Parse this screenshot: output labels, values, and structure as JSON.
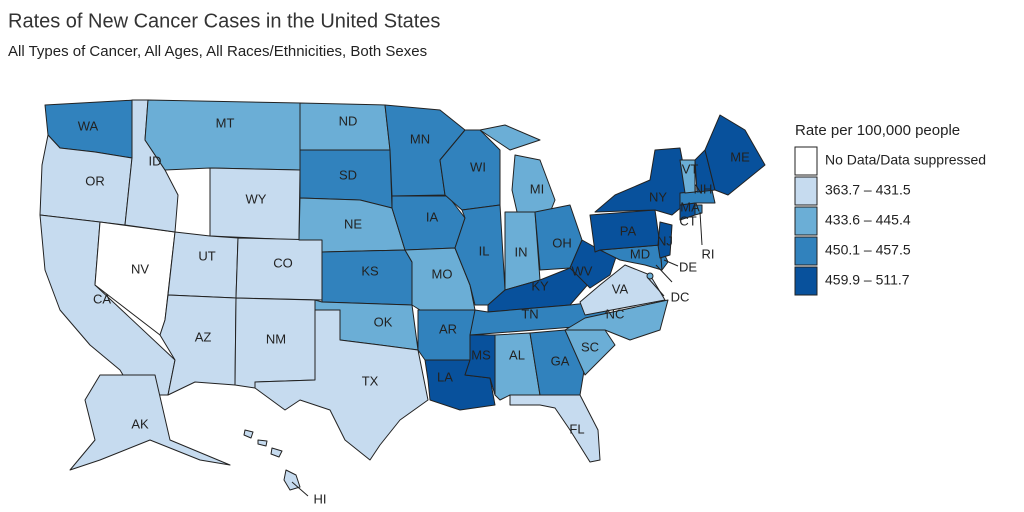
{
  "title": "Rates of New Cancer Cases in the United States",
  "subtitle": "All Types of Cancer, All Ages, All Races/Ethnicities, Both Sexes",
  "legend": {
    "title": "Rate per 100,000 people",
    "bins": [
      {
        "label": "No Data/Data suppressed",
        "color": "#ffffff"
      },
      {
        "label": "363.7 – 431.5",
        "color": "#c6dbef"
      },
      {
        "label": "433.6 – 445.4",
        "color": "#6baed6"
      },
      {
        "label": "450.1 – 457.5",
        "color": "#3182bd"
      },
      {
        "label": "459.9 – 511.7",
        "color": "#08519c"
      }
    ]
  },
  "states": [
    {
      "abbr": "WA",
      "bin": 3
    },
    {
      "abbr": "OR",
      "bin": 1
    },
    {
      "abbr": "CA",
      "bin": 1
    },
    {
      "abbr": "NV",
      "bin": 0
    },
    {
      "abbr": "ID",
      "bin": 1
    },
    {
      "abbr": "MT",
      "bin": 2
    },
    {
      "abbr": "WY",
      "bin": 1
    },
    {
      "abbr": "UT",
      "bin": 1
    },
    {
      "abbr": "CO",
      "bin": 1
    },
    {
      "abbr": "AZ",
      "bin": 1
    },
    {
      "abbr": "NM",
      "bin": 1
    },
    {
      "abbr": "ND",
      "bin": 2
    },
    {
      "abbr": "SD",
      "bin": 3
    },
    {
      "abbr": "NE",
      "bin": 2
    },
    {
      "abbr": "KS",
      "bin": 3
    },
    {
      "abbr": "OK",
      "bin": 2
    },
    {
      "abbr": "TX",
      "bin": 1
    },
    {
      "abbr": "MN",
      "bin": 3
    },
    {
      "abbr": "IA",
      "bin": 3
    },
    {
      "abbr": "MO",
      "bin": 2
    },
    {
      "abbr": "AR",
      "bin": 3
    },
    {
      "abbr": "LA",
      "bin": 4
    },
    {
      "abbr": "WI",
      "bin": 3
    },
    {
      "abbr": "IL",
      "bin": 3
    },
    {
      "abbr": "MI",
      "bin": 2
    },
    {
      "abbr": "IN",
      "bin": 2
    },
    {
      "abbr": "OH",
      "bin": 3
    },
    {
      "abbr": "KY",
      "bin": 4
    },
    {
      "abbr": "TN",
      "bin": 3
    },
    {
      "abbr": "MS",
      "bin": 4
    },
    {
      "abbr": "AL",
      "bin": 2
    },
    {
      "abbr": "GA",
      "bin": 3
    },
    {
      "abbr": "FL",
      "bin": 1
    },
    {
      "abbr": "SC",
      "bin": 2
    },
    {
      "abbr": "NC",
      "bin": 2
    },
    {
      "abbr": "VA",
      "bin": 1
    },
    {
      "abbr": "WV",
      "bin": 4
    },
    {
      "abbr": "MD",
      "bin": 3
    },
    {
      "abbr": "DE",
      "bin": 3
    },
    {
      "abbr": "DC",
      "bin": 2
    },
    {
      "abbr": "PA",
      "bin": 4
    },
    {
      "abbr": "NJ",
      "bin": 4
    },
    {
      "abbr": "NY",
      "bin": 4
    },
    {
      "abbr": "CT",
      "bin": 4
    },
    {
      "abbr": "RI",
      "bin": 3
    },
    {
      "abbr": "MA",
      "bin": 3
    },
    {
      "abbr": "VT",
      "bin": 2
    },
    {
      "abbr": "NH",
      "bin": 4
    },
    {
      "abbr": "ME",
      "bin": 4
    },
    {
      "abbr": "AK",
      "bin": 1
    },
    {
      "abbr": "HI",
      "bin": 1
    }
  ]
}
